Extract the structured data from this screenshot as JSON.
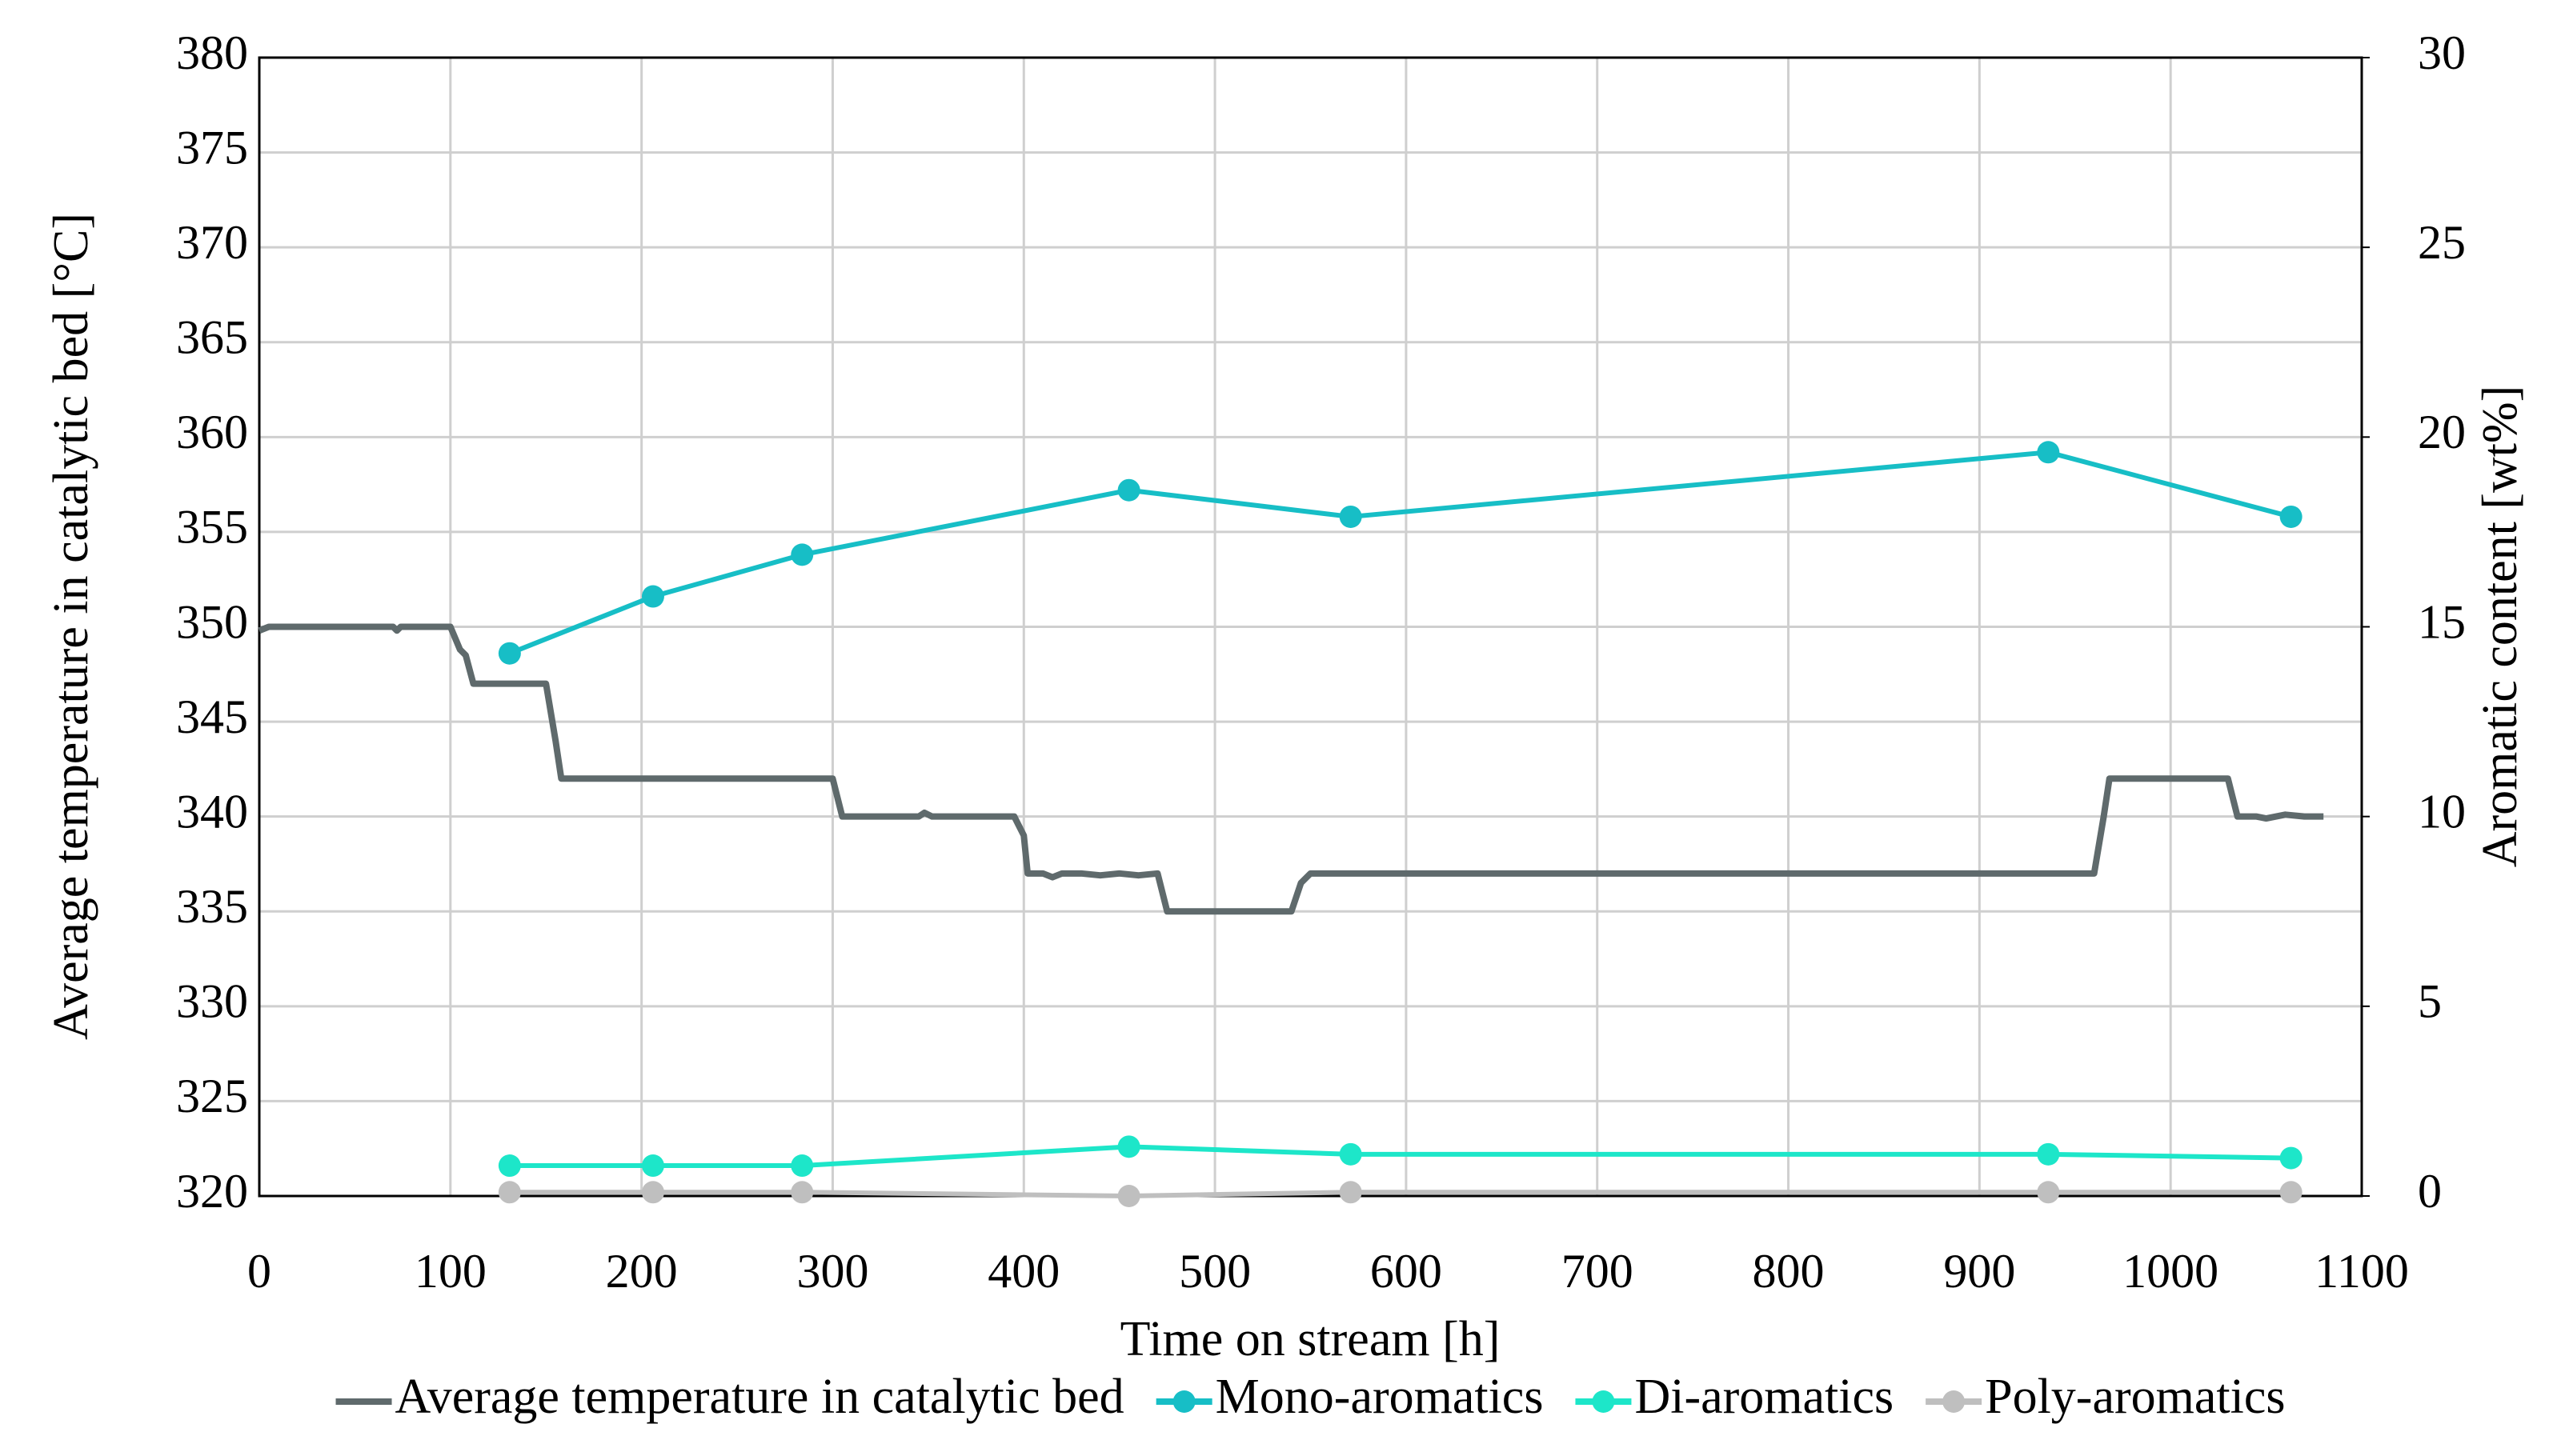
{
  "chart_data": {
    "type": "line",
    "x_label": "Time on stream [h]",
    "y_label": "Average temperature in catalytic bed [°C]",
    "y2_label": "Aromatic content [wt%]",
    "xlim": [
      0,
      1100
    ],
    "xticks": [
      0,
      100,
      200,
      300,
      400,
      500,
      600,
      700,
      800,
      900,
      1000,
      1100
    ],
    "ylim": [
      320,
      380
    ],
    "yticks": [
      320,
      325,
      330,
      335,
      340,
      345,
      350,
      355,
      360,
      365,
      370,
      375,
      380
    ],
    "y2lim": [
      0,
      30
    ],
    "y2ticks": [
      0,
      5,
      10,
      15,
      20,
      25,
      30
    ],
    "grid": true,
    "legend": "bottom",
    "series": [
      {
        "name": "Average temperature in catalytic bed",
        "color": "#5f6a6c",
        "axis": "y",
        "markers": false,
        "x": [
          0,
          5,
          70,
          72,
          74,
          100,
          105,
          108,
          112,
          150,
          155,
          158,
          300,
          305,
          345,
          348,
          352,
          395,
          400,
          402,
          410,
          415,
          420,
          430,
          440,
          450,
          460,
          470,
          475,
          540,
          545,
          550,
          960,
          965,
          968,
          1030,
          1035,
          1045,
          1050,
          1060,
          1070,
          1080
        ],
        "values": [
          349.8,
          350,
          350,
          349.8,
          350,
          350,
          348.8,
          348.5,
          347,
          347,
          344,
          342,
          342,
          340,
          340,
          340.2,
          340,
          340,
          339,
          337,
          337,
          336.8,
          337,
          337,
          336.9,
          337,
          336.9,
          337,
          335,
          335,
          336.5,
          337,
          337,
          340,
          342,
          342,
          340,
          340,
          339.9,
          340.1,
          340,
          340
        ]
      },
      {
        "name": "Mono-aromatics",
        "color": "#17bec6",
        "axis": "y2",
        "markers": true,
        "x": [
          131,
          206,
          284,
          455,
          571,
          936,
          1063
        ],
        "values": [
          14.3,
          15.8,
          16.9,
          18.6,
          17.9,
          19.6,
          17.9
        ]
      },
      {
        "name": "Di-aromatics",
        "color": "#1de6c9",
        "axis": "y2",
        "markers": true,
        "x": [
          131,
          206,
          284,
          455,
          571,
          936,
          1063
        ],
        "values": [
          0.8,
          0.8,
          0.8,
          1.3,
          1.1,
          1.1,
          1.0
        ]
      },
      {
        "name": "Poly-aromatics",
        "color": "#bfbfbf",
        "axis": "y2",
        "markers": true,
        "x": [
          131,
          206,
          284,
          455,
          571,
          936,
          1063
        ],
        "values": [
          0.1,
          0.1,
          0.1,
          0.0,
          0.1,
          0.1,
          0.1
        ]
      }
    ]
  }
}
